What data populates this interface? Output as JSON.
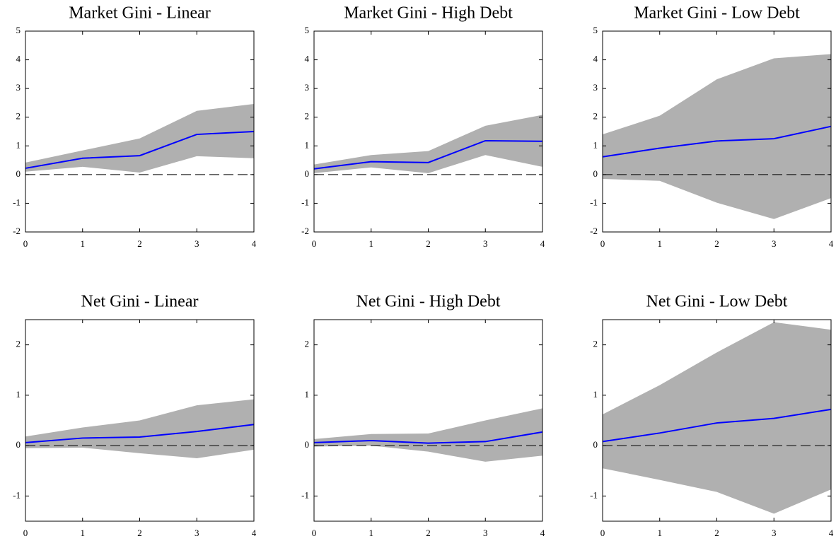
{
  "chart_data": [
    {
      "type": "line",
      "title": "Market Gini - Linear",
      "x": [
        0,
        1,
        2,
        3,
        4
      ],
      "xlim": [
        0,
        4
      ],
      "xticks": [
        0,
        1,
        2,
        3,
        4
      ],
      "ylim": [
        -2,
        5
      ],
      "yticks": [
        -2,
        -1,
        0,
        1,
        2,
        3,
        4,
        5
      ],
      "hline": 0,
      "series": [
        {
          "color": "#0000ff",
          "values": [
            0.22,
            0.57,
            0.66,
            1.4,
            1.5
          ]
        }
      ],
      "band": {
        "color": "#b0b0b0",
        "lower": [
          0.1,
          0.27,
          0.07,
          0.64,
          0.57
        ],
        "upper": [
          0.42,
          0.84,
          1.26,
          2.22,
          2.46
        ]
      }
    },
    {
      "type": "line",
      "title": "Market Gini - High Debt",
      "x": [
        0,
        1,
        2,
        3,
        4
      ],
      "xlim": [
        0,
        4
      ],
      "xticks": [
        0,
        1,
        2,
        3,
        4
      ],
      "ylim": [
        -2,
        5
      ],
      "yticks": [
        -2,
        -1,
        0,
        1,
        2,
        3,
        4,
        5
      ],
      "hline": 0,
      "series": [
        {
          "color": "#0000ff",
          "values": [
            0.2,
            0.45,
            0.42,
            1.18,
            1.16
          ]
        }
      ],
      "band": {
        "color": "#b0b0b0",
        "lower": [
          0.05,
          0.25,
          0.05,
          0.68,
          0.27
        ],
        "upper": [
          0.35,
          0.68,
          0.82,
          1.7,
          2.08
        ]
      }
    },
    {
      "type": "line",
      "title": "Market Gini - Low Debt",
      "x": [
        0,
        1,
        2,
        3,
        4
      ],
      "xlim": [
        0,
        4
      ],
      "xticks": [
        0,
        1,
        2,
        3,
        4
      ],
      "ylim": [
        -2,
        5
      ],
      "yticks": [
        -2,
        -1,
        0,
        1,
        2,
        3,
        4,
        5
      ],
      "hline": 0,
      "series": [
        {
          "color": "#0000ff",
          "values": [
            0.62,
            0.92,
            1.17,
            1.25,
            1.68
          ]
        }
      ],
      "band": {
        "color": "#b0b0b0",
        "lower": [
          -0.15,
          -0.22,
          -0.98,
          -1.55,
          -0.82
        ],
        "upper": [
          1.4,
          2.05,
          3.32,
          4.05,
          4.2
        ]
      }
    },
    {
      "type": "line",
      "title": "Net Gini - Linear",
      "x": [
        0,
        1,
        2,
        3,
        4
      ],
      "xlim": [
        0,
        4
      ],
      "xticks": [
        0,
        1,
        2,
        3,
        4
      ],
      "ylim": [
        -1.5,
        2.5
      ],
      "yticks": [
        -1,
        0,
        1,
        2
      ],
      "hline": 0,
      "series": [
        {
          "color": "#0000ff",
          "values": [
            0.06,
            0.15,
            0.17,
            0.28,
            0.42
          ]
        }
      ],
      "band": {
        "color": "#b0b0b0",
        "lower": [
          -0.05,
          -0.04,
          -0.15,
          -0.25,
          -0.08
        ],
        "upper": [
          0.18,
          0.36,
          0.5,
          0.8,
          0.92
        ]
      }
    },
    {
      "type": "line",
      "title": "Net Gini - High Debt",
      "x": [
        0,
        1,
        2,
        3,
        4
      ],
      "xlim": [
        0,
        4
      ],
      "xticks": [
        0,
        1,
        2,
        3,
        4
      ],
      "ylim": [
        -1.5,
        2.5
      ],
      "yticks": [
        -1,
        0,
        1,
        2
      ],
      "hline": 0,
      "series": [
        {
          "color": "#0000ff",
          "values": [
            0.06,
            0.1,
            0.05,
            0.08,
            0.27
          ]
        }
      ],
      "band": {
        "color": "#b0b0b0",
        "lower": [
          -0.02,
          0.0,
          -0.12,
          -0.32,
          -0.2
        ],
        "upper": [
          0.13,
          0.23,
          0.24,
          0.5,
          0.74
        ]
      }
    },
    {
      "type": "line",
      "title": "Net Gini - Low Debt",
      "x": [
        0,
        1,
        2,
        3,
        4
      ],
      "xlim": [
        0,
        4
      ],
      "xticks": [
        0,
        1,
        2,
        3,
        4
      ],
      "ylim": [
        -1.5,
        2.5
      ],
      "yticks": [
        -1,
        0,
        1,
        2
      ],
      "hline": 0,
      "series": [
        {
          "color": "#0000ff",
          "values": [
            0.08,
            0.25,
            0.45,
            0.54,
            0.72
          ]
        }
      ],
      "band": {
        "color": "#b0b0b0",
        "lower": [
          -0.45,
          -0.68,
          -0.92,
          -1.35,
          -0.87
        ],
        "upper": [
          0.62,
          1.2,
          1.85,
          2.45,
          2.3
        ]
      }
    }
  ]
}
